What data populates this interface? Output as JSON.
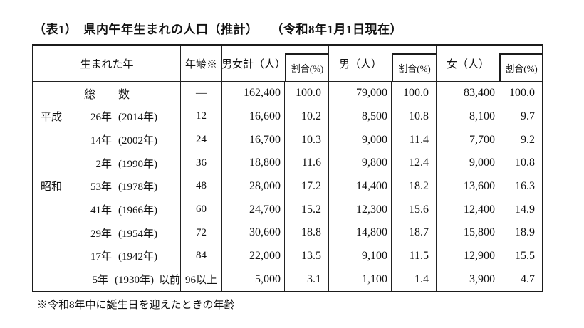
{
  "title": "（表1）　県内午年生まれの人口（推計）　　（令和8年1月1日現在）",
  "footnote": "※令和8年中に誕生日を迎えたときの年齢",
  "colors": {
    "border": "#1b1b1b",
    "text": "#111111",
    "background": "#ffffff"
  },
  "table": {
    "headers": {
      "born_year": "生まれた年",
      "age": "年齢※",
      "total": "男女計（人）",
      "ratio": "割合(%)",
      "male": "男（人）",
      "female": "女（人）"
    },
    "rows": [
      {
        "label": "総　　数",
        "age": "—",
        "total": "162,400",
        "total_pct": "100.0",
        "male": "79,000",
        "male_pct": "100.0",
        "female": "83,400",
        "female_pct": "100.0"
      },
      {
        "era": "平成",
        "year": "26年",
        "paren": "(2014年)",
        "age": "12",
        "total": "16,600",
        "total_pct": "10.2",
        "male": "8,500",
        "male_pct": "10.8",
        "female": "8,100",
        "female_pct": "9.7"
      },
      {
        "era": "",
        "year": "14年",
        "paren": "(2002年)",
        "age": "24",
        "total": "16,700",
        "total_pct": "10.3",
        "male": "9,000",
        "male_pct": "11.4",
        "female": "7,700",
        "female_pct": "9.2"
      },
      {
        "era": "",
        "year": "2年",
        "paren": "(1990年)",
        "age": "36",
        "total": "18,800",
        "total_pct": "11.6",
        "male": "9,800",
        "male_pct": "12.4",
        "female": "9,000",
        "female_pct": "10.8"
      },
      {
        "era": "昭和",
        "year": "53年",
        "paren": "(1978年)",
        "age": "48",
        "total": "28,000",
        "total_pct": "17.2",
        "male": "14,400",
        "male_pct": "18.2",
        "female": "13,600",
        "female_pct": "16.3"
      },
      {
        "era": "",
        "year": "41年",
        "paren": "(1966年)",
        "age": "60",
        "total": "24,700",
        "total_pct": "15.2",
        "male": "12,300",
        "male_pct": "15.6",
        "female": "12,400",
        "female_pct": "14.9"
      },
      {
        "era": "",
        "year": "29年",
        "paren": "(1954年)",
        "age": "72",
        "total": "30,600",
        "total_pct": "18.8",
        "male": "14,800",
        "male_pct": "18.7",
        "female": "15,800",
        "female_pct": "18.9"
      },
      {
        "era": "",
        "year": "17年",
        "paren": "(1942年)",
        "age": "84",
        "total": "22,000",
        "total_pct": "13.5",
        "male": "9,100",
        "male_pct": "11.5",
        "female": "12,900",
        "female_pct": "15.5"
      },
      {
        "era": "",
        "year": "5年",
        "paren": "(1930年)",
        "suffix": "以前",
        "age": "96以上",
        "total": "5,000",
        "total_pct": "3.1",
        "male": "1,100",
        "male_pct": "1.4",
        "female": "3,900",
        "female_pct": "4.7"
      }
    ]
  }
}
